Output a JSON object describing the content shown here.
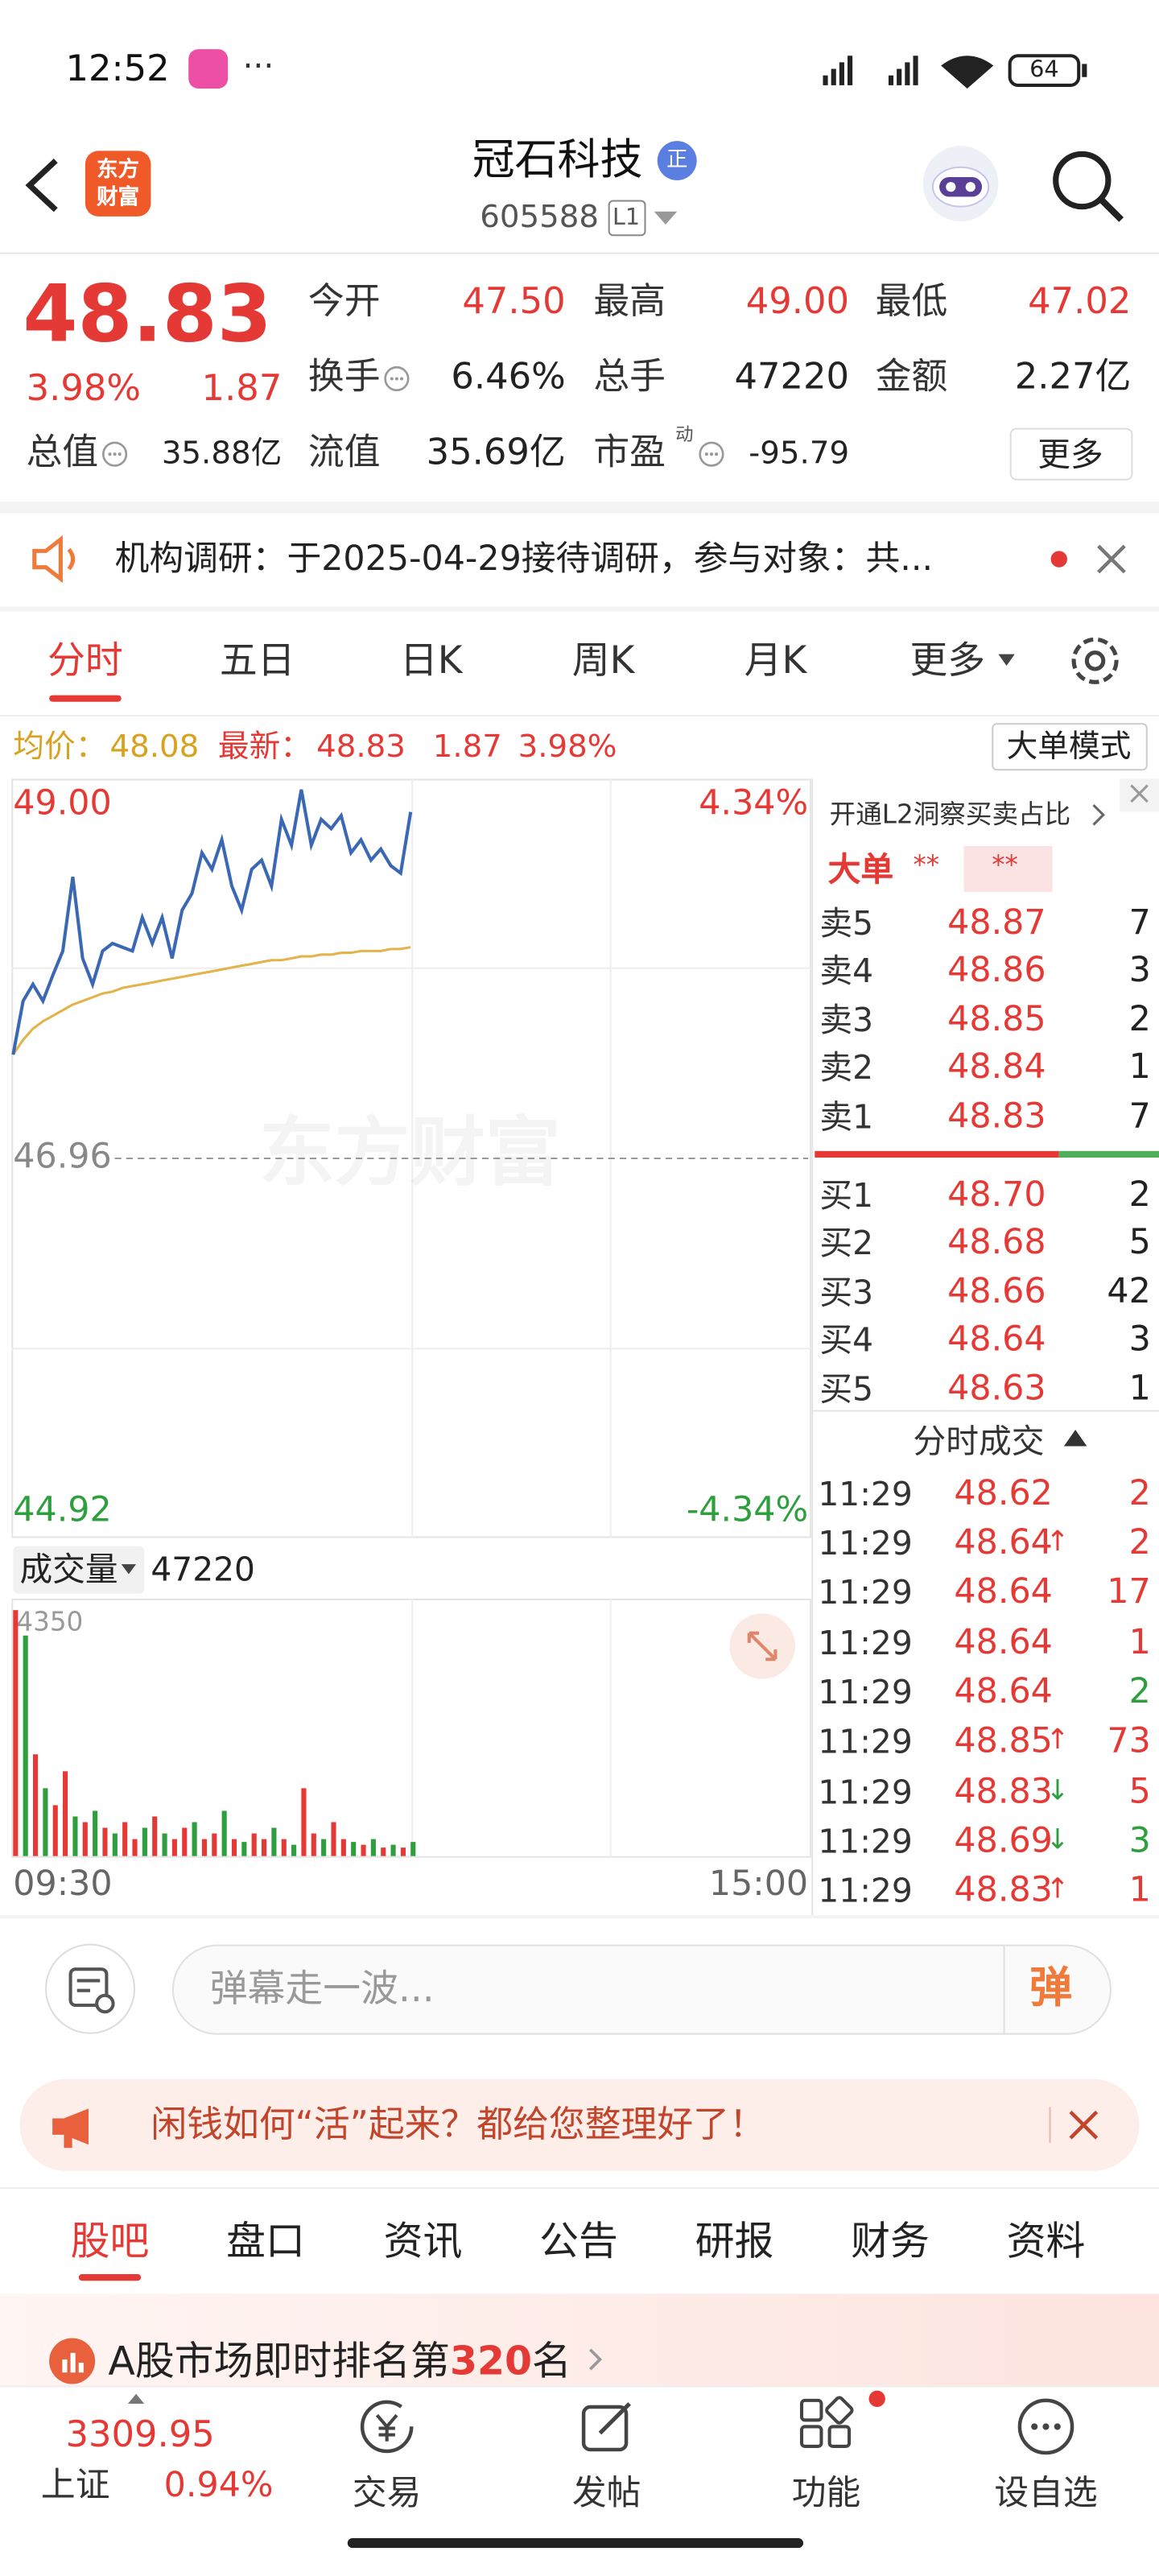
{
  "status": {
    "time": "12:52",
    "battery": "64"
  },
  "header": {
    "logo": [
      "东方",
      "财富"
    ],
    "title": "冠石科技",
    "badge": "正",
    "code": "605588",
    "level": "L1"
  },
  "quote": {
    "price": "48.83",
    "percent": "3.98%",
    "change": "1.87",
    "fields": [
      {
        "label": "今开",
        "value": "47.50"
      },
      {
        "label": "最高",
        "value": "49.00"
      },
      {
        "label": "最低",
        "value": "47.02"
      },
      {
        "label": "换手",
        "value": "6.46%"
      },
      {
        "label": "总手",
        "value": "47220"
      },
      {
        "label": "金额",
        "value": "2.27亿"
      },
      {
        "label": "总值",
        "value": "35.88亿"
      },
      {
        "label": "流值",
        "value": "35.69亿"
      },
      {
        "label": "市盈",
        "sup": "动",
        "value": "-95.79"
      }
    ],
    "more": "更多"
  },
  "notice": "机构调研：于2025-04-29接待调研，参与对象：共...",
  "tabs": [
    "分时",
    "五日",
    "日K",
    "周K",
    "月K",
    "更多"
  ],
  "summary": {
    "avg_label": "均价：",
    "avg": "48.08",
    "last_label": "最新：",
    "last": "48.83",
    "change": "1.87",
    "percent": "3.98%",
    "mode": "大单模式"
  },
  "chart_data": [
    {
      "type": "line",
      "watermark": "东方财富",
      "xlim": [
        0,
        240
      ],
      "xticks": [
        {
          "value": 0,
          "label": "09:30"
        },
        {
          "value": 240,
          "label": "15:00"
        }
      ],
      "ylim": [
        44.92,
        49
      ],
      "yticks": [
        {
          "value": 49,
          "label": "49.00"
        },
        46.96,
        44.92
      ],
      "y2lim": [
        -4.34,
        4.34
      ],
      "y2ticks": [
        {
          "value": 4.34,
          "label": "4.34%"
        },
        {
          "value": -4.34,
          "label": "-4.34%"
        }
      ],
      "x": [
        0,
        3,
        6,
        9,
        12,
        15,
        18,
        21,
        24,
        27,
        30,
        33,
        36,
        39,
        42,
        45,
        48,
        51,
        54,
        57,
        60,
        63,
        66,
        69,
        72,
        75,
        78,
        81,
        84,
        87,
        90,
        93,
        96,
        99,
        102,
        105,
        108,
        111,
        114,
        117,
        120
      ],
      "series": [
        {
          "color": "#3a68b4",
          "values": [
            47.52,
            47.81,
            47.9,
            47.81,
            47.95,
            48.08,
            48.48,
            48.04,
            47.9,
            48.08,
            48.12,
            48.1,
            48.08,
            48.26,
            48.12,
            48.26,
            48.04,
            48.3,
            48.39,
            48.61,
            48.52,
            48.68,
            48.43,
            48.3,
            48.52,
            48.57,
            48.43,
            48.79,
            48.65,
            48.95,
            48.65,
            48.79,
            48.74,
            48.81,
            48.61,
            48.68,
            48.57,
            48.63,
            48.54,
            48.5,
            48.83
          ]
        },
        {
          "color": "#e3b34c",
          "values": [
            47.52,
            47.6,
            47.66,
            47.7,
            47.73,
            47.76,
            47.79,
            47.81,
            47.83,
            47.85,
            47.86,
            47.88,
            47.89,
            47.9,
            47.91,
            47.92,
            47.93,
            47.94,
            47.95,
            47.96,
            47.97,
            47.98,
            47.99,
            48.0,
            48.01,
            48.02,
            48.03,
            48.03,
            48.04,
            48.05,
            48.05,
            48.06,
            48.06,
            48.07,
            48.07,
            48.08,
            48.08,
            48.08,
            48.09,
            48.09,
            48.1
          ]
        }
      ]
    },
    {
      "type": "bar",
      "title": "成交量",
      "total": "47220",
      "xlim": [
        0,
        240
      ],
      "ylim": [
        0,
        4350
      ],
      "yticks": [
        4350
      ],
      "x": [
        0,
        3,
        6,
        9,
        12,
        15,
        18,
        21,
        24,
        27,
        30,
        33,
        36,
        39,
        42,
        45,
        48,
        51,
        54,
        57,
        60,
        63,
        66,
        69,
        72,
        75,
        78,
        81,
        84,
        87,
        90,
        93,
        96,
        99,
        102,
        105,
        108,
        111,
        114,
        117,
        120
      ],
      "values": [
        4350,
        3900,
        1800,
        1200,
        900,
        1500,
        700,
        600,
        800,
        500,
        400,
        600,
        300,
        500,
        700,
        400,
        300,
        500,
        600,
        300,
        400,
        800,
        300,
        250,
        400,
        300,
        500,
        300,
        200,
        1200,
        400,
        300,
        600,
        300,
        250,
        200,
        300,
        150,
        200,
        150,
        250
      ],
      "colors": [
        "#e53935",
        "#2e9e3e",
        "#e53935",
        "#2e9e3e",
        "#e53935",
        "#e53935",
        "#2e9e3e",
        "#e53935",
        "#2e9e3e",
        "#e53935",
        "#2e9e3e",
        "#e53935",
        "#e53935",
        "#2e9e3e",
        "#e53935",
        "#2e9e3e",
        "#e53935",
        "#e53935",
        "#2e9e3e",
        "#e53935",
        "#e53935",
        "#2e9e3e",
        "#e53935",
        "#2e9e3e",
        "#e53935",
        "#e53935",
        "#2e9e3e",
        "#e53935",
        "#2e9e3e",
        "#e53935",
        "#e53935",
        "#2e9e3e",
        "#e53935",
        "#e53935",
        "#2e9e3e",
        "#e53935",
        "#2e9e3e",
        "#e53935",
        "#2e9e3e",
        "#e53935",
        "#2e9e3e"
      ]
    }
  ],
  "orderbook": {
    "promo": "开通L2洞察买卖占比",
    "big_label": "大单",
    "big_values": [
      "**",
      "**"
    ],
    "sell": [
      {
        "label": "卖5",
        "price": "48.87",
        "volume": "7"
      },
      {
        "label": "卖4",
        "price": "48.86",
        "volume": "3"
      },
      {
        "label": "卖3",
        "price": "48.85",
        "volume": "2"
      },
      {
        "label": "卖2",
        "price": "48.84",
        "volume": "1"
      },
      {
        "label": "卖1",
        "price": "48.83",
        "volume": "7"
      }
    ],
    "buy": [
      {
        "label": "买1",
        "price": "48.70",
        "volume": "2"
      },
      {
        "label": "买2",
        "price": "48.68",
        "volume": "5"
      },
      {
        "label": "买3",
        "price": "48.66",
        "volume": "42"
      },
      {
        "label": "买4",
        "price": "48.64",
        "volume": "3"
      },
      {
        "label": "买5",
        "price": "48.63",
        "volume": "1"
      }
    ],
    "trades_title": "分时成交",
    "trades": [
      {
        "time": "11:29",
        "price": "48.62",
        "volume": "2",
        "color": "#e53935"
      },
      {
        "time": "11:29",
        "price": "48.64",
        "arrow": "↑",
        "arrow_color": "#e53935",
        "volume": "2",
        "color": "#e53935"
      },
      {
        "time": "11:29",
        "price": "48.64",
        "volume": "17",
        "color": "#e53935"
      },
      {
        "time": "11:29",
        "price": "48.64",
        "volume": "1",
        "color": "#e53935"
      },
      {
        "time": "11:29",
        "price": "48.64",
        "volume": "2",
        "color": "#2e9e3e"
      },
      {
        "time": "11:29",
        "price": "48.85",
        "arrow": "↑",
        "arrow_color": "#e53935",
        "volume": "73",
        "color": "#e53935"
      },
      {
        "time": "11:29",
        "price": "48.83",
        "arrow": "↓",
        "arrow_color": "#2e9e3e",
        "volume": "5",
        "color": "#e53935"
      },
      {
        "time": "11:29",
        "price": "48.69",
        "arrow": "↓",
        "arrow_color": "#2e9e3e",
        "volume": "3",
        "color": "#2e9e3e"
      },
      {
        "time": "11:29",
        "price": "48.83",
        "arrow": "↑",
        "arrow_color": "#e53935",
        "volume": "1",
        "color": "#e53935"
      }
    ]
  },
  "danmaku": {
    "placeholder": "弹幕走一波...",
    "button": "弹"
  },
  "ad": "闲钱如何“活”起来？都给您整理好了！",
  "sections": [
    "股吧",
    "盘口",
    "资讯",
    "公告",
    "研报",
    "财务",
    "资料"
  ],
  "ranking": {
    "text": "A股市场即时排名第",
    "rank": "320",
    "suffix": "名"
  },
  "bottom": {
    "index_value": "3309.95",
    "index_name": "上证",
    "index_percent": "0.94%",
    "items": [
      "交易",
      "发帖",
      "功能",
      "设自选"
    ]
  }
}
